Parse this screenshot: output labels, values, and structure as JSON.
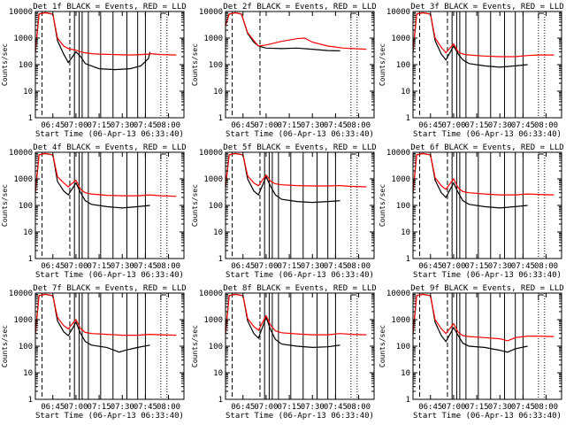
{
  "figure": {
    "ylabel": "Counts/sec",
    "xlabel": "Start Time (06-Apr-13 06:33:40)",
    "xticks": [
      "06:45",
      "07:00",
      "07:15",
      "07:30",
      "07:45",
      "08:00"
    ],
    "yticks": [
      "1",
      "10",
      "100",
      "1000",
      "10000"
    ]
  },
  "colors": {
    "events": "#000000",
    "lld": "#ff0000",
    "axes": "#000000",
    "background": "#ffffff"
  },
  "chart_data": [
    {
      "type": "line",
      "title": "Det 1f BLACK = Events, RED = LLD",
      "xlabel": "Start Time (06-Apr-13 06:33:40)",
      "ylabel": "Counts/sec",
      "xlim": [
        "06:33:40",
        "08:10"
      ],
      "ylim": [
        1,
        10000
      ],
      "yscale": "log",
      "series": [
        {
          "name": "Events",
          "color": "#000000",
          "x": [
            "06:33:40",
            "06:36",
            "06:40",
            "06:45",
            "06:48",
            "06:52",
            "06:55",
            "07:00",
            "07:03",
            "07:06",
            "07:10",
            "07:15",
            "07:25",
            "07:35",
            "07:42",
            "07:47",
            "07:48"
          ],
          "y": [
            300,
            8000,
            9000,
            8000,
            800,
            250,
            120,
            300,
            200,
            110,
            90,
            70,
            65,
            70,
            90,
            170,
            300
          ]
        },
        {
          "name": "LLD",
          "color": "#ff0000",
          "x": [
            "06:33:40",
            "06:36",
            "06:40",
            "06:45",
            "06:48",
            "06:52",
            "06:55",
            "07:00",
            "07:03",
            "07:06",
            "07:10",
            "07:15",
            "07:25",
            "07:35",
            "07:42",
            "07:47",
            "07:48",
            "07:55",
            "08:05"
          ],
          "y": [
            300,
            8000,
            9000,
            8000,
            1000,
            500,
            400,
            350,
            300,
            280,
            260,
            250,
            240,
            230,
            240,
            250,
            260,
            240,
            230
          ]
        }
      ]
    },
    {
      "type": "line",
      "title": "Det 2f BLACK = Events, RED = LLD",
      "xlabel": "Start Time (06-Apr-13 06:33:40)",
      "ylabel": "Counts/sec",
      "xlim": [
        "06:33:40",
        "08:10"
      ],
      "ylim": [
        1,
        10000
      ],
      "yscale": "log",
      "series": [
        {
          "name": "Events",
          "color": "#000000",
          "x": [
            "06:33:40",
            "06:36",
            "06:40",
            "06:44",
            "06:48",
            "06:52",
            "06:55",
            "07:00",
            "07:10",
            "07:20",
            "07:30",
            "07:40",
            "07:48"
          ],
          "y": [
            3000,
            8000,
            9000,
            8000,
            1500,
            700,
            500,
            420,
            400,
            420,
            380,
            340,
            330
          ]
        },
        {
          "name": "LLD",
          "color": "#ff0000",
          "x": [
            "06:33:40",
            "06:36",
            "06:40",
            "06:44",
            "06:48",
            "06:52",
            "06:55",
            "07:00",
            "07:10",
            "07:20",
            "07:25",
            "07:30",
            "07:40",
            "07:50",
            "08:05"
          ],
          "y": [
            3000,
            8000,
            9000,
            8000,
            1600,
            800,
            500,
            550,
            750,
            950,
            1000,
            700,
            500,
            420,
            380
          ]
        }
      ]
    },
    {
      "type": "line",
      "title": "Det 3f BLACK = Events, RED = LLD",
      "xlabel": "Start Time (06-Apr-13 06:33:40)",
      "ylabel": "Counts/sec",
      "xlim": [
        "06:33:40",
        "08:10"
      ],
      "ylim": [
        1,
        10000
      ],
      "yscale": "log",
      "series": [
        {
          "name": "Events",
          "color": "#000000",
          "x": [
            "06:33:40",
            "06:36",
            "06:40",
            "06:45",
            "06:48",
            "06:52",
            "06:55",
            "07:00",
            "07:03",
            "07:06",
            "07:10",
            "07:20",
            "07:30",
            "07:40",
            "07:48"
          ],
          "y": [
            300,
            8000,
            9000,
            8000,
            800,
            250,
            150,
            500,
            250,
            150,
            110,
            90,
            80,
            90,
            100
          ]
        },
        {
          "name": "LLD",
          "color": "#ff0000",
          "x": [
            "06:33:40",
            "06:36",
            "06:40",
            "06:45",
            "06:48",
            "06:52",
            "06:55",
            "07:00",
            "07:03",
            "07:06",
            "07:10",
            "07:20",
            "07:30",
            "07:40",
            "07:48",
            "07:55",
            "08:05"
          ],
          "y": [
            300,
            8000,
            9000,
            8000,
            1000,
            450,
            280,
            600,
            300,
            250,
            230,
            210,
            200,
            200,
            220,
            230,
            230
          ]
        }
      ]
    },
    {
      "type": "line",
      "title": "Det 4f BLACK = Events, RED = LLD",
      "xlabel": "Start Time (06-Apr-13 06:33:40)",
      "ylabel": "Counts/sec",
      "xlim": [
        "06:33:40",
        "08:10"
      ],
      "ylim": [
        1,
        10000
      ],
      "yscale": "log",
      "series": [
        {
          "name": "Events",
          "color": "#000000",
          "x": [
            "06:33:40",
            "06:36",
            "06:40",
            "06:45",
            "06:48",
            "06:52",
            "06:55",
            "07:00",
            "07:03",
            "07:06",
            "07:10",
            "07:20",
            "07:30",
            "07:40",
            "07:48"
          ],
          "y": [
            300,
            8000,
            9000,
            8000,
            800,
            350,
            250,
            700,
            300,
            150,
            110,
            90,
            80,
            90,
            100
          ]
        },
        {
          "name": "LLD",
          "color": "#ff0000",
          "x": [
            "06:33:40",
            "06:36",
            "06:40",
            "06:45",
            "06:48",
            "06:52",
            "06:55",
            "07:00",
            "07:03",
            "07:06",
            "07:10",
            "07:20",
            "07:30",
            "07:40",
            "07:48",
            "07:55",
            "08:05"
          ],
          "y": [
            300,
            8000,
            9000,
            8000,
            1200,
            700,
            500,
            900,
            400,
            300,
            270,
            240,
            230,
            230,
            250,
            230,
            220
          ]
        }
      ]
    },
    {
      "type": "line",
      "title": "Det 5f BLACK = Events, RED = LLD",
      "xlabel": "Start Time (06-Apr-13 06:33:40)",
      "ylabel": "Counts/sec",
      "xlim": [
        "06:33:40",
        "08:10"
      ],
      "ylim": [
        1,
        10000
      ],
      "yscale": "log",
      "series": [
        {
          "name": "Events",
          "color": "#000000",
          "x": [
            "06:33:40",
            "06:36",
            "06:40",
            "06:45",
            "06:48",
            "06:52",
            "06:55",
            "07:00",
            "07:03",
            "07:06",
            "07:10",
            "07:20",
            "07:30",
            "07:40",
            "07:48"
          ],
          "y": [
            500,
            8000,
            9000,
            8000,
            1000,
            350,
            250,
            1200,
            500,
            250,
            170,
            140,
            130,
            140,
            150
          ]
        },
        {
          "name": "LLD",
          "color": "#ff0000",
          "x": [
            "06:33:40",
            "06:36",
            "06:40",
            "06:45",
            "06:48",
            "06:52",
            "06:55",
            "07:00",
            "07:03",
            "07:06",
            "07:10",
            "07:20",
            "07:30",
            "07:40",
            "07:48",
            "07:55",
            "08:05"
          ],
          "y": [
            500,
            8000,
            9000,
            8000,
            1300,
            700,
            550,
            1400,
            800,
            650,
            600,
            560,
            540,
            540,
            560,
            520,
            500
          ]
        }
      ]
    },
    {
      "type": "line",
      "title": "Det 6f BLACK = Events, RED = LLD",
      "xlabel": "Start Time (06-Apr-13 06:33:40)",
      "ylabel": "Counts/sec",
      "xlim": [
        "06:33:40",
        "08:10"
      ],
      "ylim": [
        1,
        10000
      ],
      "yscale": "log",
      "series": [
        {
          "name": "Events",
          "color": "#000000",
          "x": [
            "06:33:40",
            "06:36",
            "06:40",
            "06:45",
            "06:48",
            "06:52",
            "06:55",
            "07:00",
            "07:03",
            "07:06",
            "07:10",
            "07:20",
            "07:30",
            "07:40",
            "07:48"
          ],
          "y": [
            300,
            8000,
            9000,
            8000,
            900,
            300,
            200,
            700,
            300,
            150,
            110,
            90,
            80,
            90,
            100
          ]
        },
        {
          "name": "LLD",
          "color": "#ff0000",
          "x": [
            "06:33:40",
            "06:36",
            "06:40",
            "06:45",
            "06:48",
            "06:52",
            "06:55",
            "07:00",
            "07:03",
            "07:06",
            "07:10",
            "07:20",
            "07:30",
            "07:40",
            "07:48",
            "07:55",
            "08:05"
          ],
          "y": [
            300,
            8000,
            9000,
            8000,
            1100,
            550,
            400,
            1000,
            450,
            330,
            300,
            270,
            250,
            250,
            270,
            260,
            250
          ]
        }
      ]
    },
    {
      "type": "line",
      "title": "Det 7f BLACK = Events, RED = LLD",
      "xlabel": "Start Time (06-Apr-13 06:33:40)",
      "ylabel": "Counts/sec",
      "xlim": [
        "06:33:40",
        "08:10"
      ],
      "ylim": [
        1,
        10000
      ],
      "yscale": "log",
      "series": [
        {
          "name": "Events",
          "color": "#000000",
          "x": [
            "06:33:40",
            "06:36",
            "06:40",
            "06:45",
            "06:48",
            "06:52",
            "06:55",
            "07:00",
            "07:03",
            "07:06",
            "07:10",
            "07:20",
            "07:28",
            "07:32",
            "07:40",
            "07:48"
          ],
          "y": [
            300,
            8000,
            9000,
            8000,
            900,
            350,
            250,
            800,
            300,
            150,
            110,
            90,
            60,
            70,
            90,
            110
          ]
        },
        {
          "name": "LLD",
          "color": "#ff0000",
          "x": [
            "06:33:40",
            "06:36",
            "06:40",
            "06:45",
            "06:48",
            "06:52",
            "06:55",
            "07:00",
            "07:03",
            "07:06",
            "07:10",
            "07:20",
            "07:30",
            "07:40",
            "07:48",
            "07:55",
            "08:05"
          ],
          "y": [
            300,
            8000,
            9000,
            8000,
            1200,
            600,
            450,
            1000,
            450,
            330,
            300,
            280,
            260,
            260,
            280,
            270,
            260
          ]
        }
      ]
    },
    {
      "type": "line",
      "title": "Det 8f BLACK = Events, RED = LLD",
      "xlabel": "Start Time (06-Apr-13 06:33:40)",
      "ylabel": "Counts/sec",
      "xlim": [
        "06:33:40",
        "08:10"
      ],
      "ylim": [
        1,
        10000
      ],
      "yscale": "log",
      "series": [
        {
          "name": "Events",
          "color": "#000000",
          "x": [
            "06:33:40",
            "06:36",
            "06:40",
            "06:45",
            "06:48",
            "06:52",
            "06:55",
            "07:00",
            "07:03",
            "07:06",
            "07:10",
            "07:20",
            "07:30",
            "07:40",
            "07:48"
          ],
          "y": [
            300,
            8000,
            9000,
            8000,
            900,
            300,
            200,
            1200,
            400,
            180,
            120,
            100,
            90,
            95,
            110
          ]
        },
        {
          "name": "LLD",
          "color": "#ff0000",
          "x": [
            "06:33:40",
            "06:36",
            "06:40",
            "06:45",
            "06:48",
            "06:52",
            "06:55",
            "07:00",
            "07:03",
            "07:06",
            "07:10",
            "07:20",
            "07:30",
            "07:40",
            "07:48",
            "07:55",
            "08:05"
          ],
          "y": [
            300,
            8000,
            9000,
            8000,
            1100,
            550,
            400,
            1400,
            600,
            380,
            320,
            290,
            270,
            270,
            300,
            280,
            270
          ]
        }
      ]
    },
    {
      "type": "line",
      "title": "Det 9f BLACK = Events, RED = LLD",
      "xlabel": "Start Time (06-Apr-13 06:33:40)",
      "ylabel": "Counts/sec",
      "xlim": [
        "06:33:40",
        "08:10"
      ],
      "ylim": [
        1,
        10000
      ],
      "yscale": "log",
      "series": [
        {
          "name": "Events",
          "color": "#000000",
          "x": [
            "06:33:40",
            "06:36",
            "06:40",
            "06:45",
            "06:48",
            "06:52",
            "06:55",
            "07:00",
            "07:03",
            "07:06",
            "07:10",
            "07:20",
            "07:30",
            "07:35",
            "07:40",
            "07:48"
          ],
          "y": [
            300,
            8000,
            9000,
            8000,
            800,
            250,
            150,
            500,
            250,
            130,
            100,
            90,
            70,
            60,
            80,
            100
          ]
        },
        {
          "name": "LLD",
          "color": "#ff0000",
          "x": [
            "06:33:40",
            "06:36",
            "06:40",
            "06:45",
            "06:48",
            "06:52",
            "06:55",
            "07:00",
            "07:03",
            "07:06",
            "07:10",
            "07:20",
            "07:30",
            "07:35",
            "07:40",
            "07:48",
            "07:55",
            "08:05"
          ],
          "y": [
            300,
            8000,
            9000,
            8000,
            1000,
            450,
            300,
            700,
            330,
            250,
            230,
            210,
            190,
            160,
            210,
            240,
            240,
            230
          ]
        }
      ]
    }
  ]
}
